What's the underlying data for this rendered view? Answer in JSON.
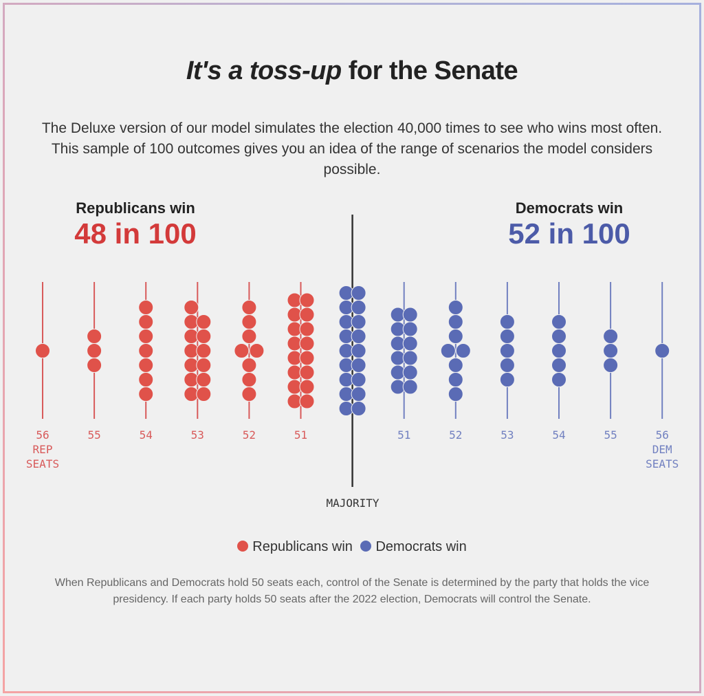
{
  "title": {
    "italic": "It's a toss-up",
    "rest": " for the Senate"
  },
  "subtitle": "The Deluxe version of our model simulates the election 40,000 times to see who wins most often. This sample of 100 outcomes gives you an idea of the range of scenarios the model considers possible.",
  "rep_summary": {
    "label": "Republicans win",
    "value": "48 in 100"
  },
  "dem_summary": {
    "label": "Democrats win",
    "value": "52 in 100"
  },
  "majority_label": "MAJORITY",
  "legend": [
    {
      "label": "Republicans win",
      "color": "#e0524a"
    },
    {
      "label": "Democrats win",
      "color": "#5a6bb5"
    }
  ],
  "footnote": "When Republicans and Democrats hold 50 seats each, control of the Senate is determined by the party that holds the vice presidency. If each party holds 50 seats after the 2022 election, Democrats will control the Senate.",
  "colors": {
    "rep": "#e0524a",
    "dem": "#5a6bb5",
    "rep_line": "#d85a5a",
    "dem_line": "#7180c0",
    "majority_line": "#333333",
    "rep_text": "#d33a3a",
    "dem_text": "#4c5ba8"
  },
  "chart_data": {
    "type": "scatter",
    "subtype": "beeswarm",
    "title": "It's a toss-up for the Senate",
    "total_simulations_shown": 100,
    "categories": [
      "56 REP SEATS",
      "55",
      "54",
      "53",
      "52",
      "51",
      "MAJORITY",
      "51",
      "52",
      "53",
      "54",
      "55",
      "56 DEM SEATS"
    ],
    "series": [
      {
        "name": "Republicans win",
        "color": "#e0524a",
        "points": [
          {
            "seats": 56,
            "count": 1
          },
          {
            "seats": 55,
            "count": 3
          },
          {
            "seats": 54,
            "count": 7
          },
          {
            "seats": 53,
            "count": 13
          },
          {
            "seats": 52,
            "count": 8
          },
          {
            "seats": 51,
            "count": 16
          }
        ],
        "total": 48
      },
      {
        "name": "Democrats win",
        "color": "#5a6bb5",
        "points": [
          {
            "seats": 50,
            "count": 18,
            "note": "50-50 tie, Democrats control via vice presidency"
          },
          {
            "seats": 51,
            "count": 12
          },
          {
            "seats": 52,
            "count": 8
          },
          {
            "seats": 53,
            "count": 5
          },
          {
            "seats": 54,
            "count": 5
          },
          {
            "seats": 55,
            "count": 3
          },
          {
            "seats": 56,
            "count": 1
          }
        ],
        "total": 52
      }
    ],
    "columns": [
      {
        "party": "rep",
        "seats": 56,
        "label": [
          "56",
          "REP",
          "SEATS"
        ],
        "count": 1
      },
      {
        "party": "rep",
        "seats": 55,
        "label": [
          "55"
        ],
        "count": 3
      },
      {
        "party": "rep",
        "seats": 54,
        "label": [
          "54"
        ],
        "count": 7
      },
      {
        "party": "rep",
        "seats": 53,
        "label": [
          "53"
        ],
        "count": 13
      },
      {
        "party": "rep",
        "seats": 52,
        "label": [
          "52"
        ],
        "count": 8
      },
      {
        "party": "rep",
        "seats": 51,
        "label": [
          "51"
        ],
        "count": 16
      },
      {
        "party": "dem",
        "seats": 50,
        "label": [],
        "count": 18,
        "majority": true
      },
      {
        "party": "dem",
        "seats": 51,
        "label": [
          "51"
        ],
        "count": 12
      },
      {
        "party": "dem",
        "seats": 52,
        "label": [
          "52"
        ],
        "count": 8
      },
      {
        "party": "dem",
        "seats": 53,
        "label": [
          "53"
        ],
        "count": 5
      },
      {
        "party": "dem",
        "seats": 54,
        "label": [
          "54"
        ],
        "count": 5
      },
      {
        "party": "dem",
        "seats": 55,
        "label": [
          "55"
        ],
        "count": 3
      },
      {
        "party": "dem",
        "seats": 56,
        "label": [
          "56",
          "DEM",
          "SEATS"
        ],
        "count": 1
      }
    ],
    "legend_position": "bottom-center",
    "grid": false
  }
}
